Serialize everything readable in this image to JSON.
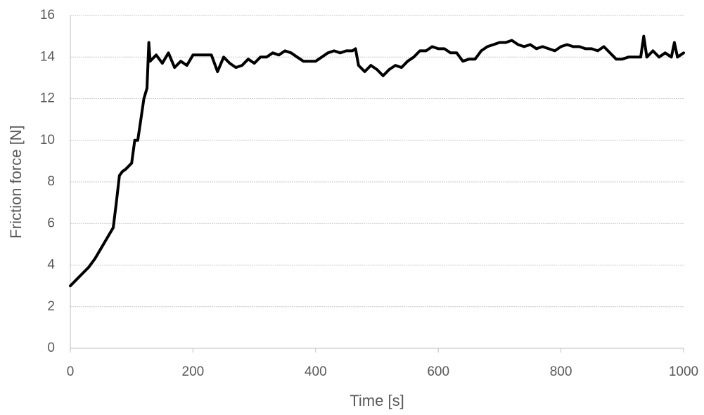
{
  "chart_data": {
    "type": "line",
    "x_label": "Time [s]",
    "y_label": "Friction force [N]",
    "x": [
      0,
      10,
      20,
      30,
      40,
      50,
      60,
      70,
      75,
      80,
      85,
      90,
      100,
      105,
      110,
      115,
      120,
      125,
      128,
      130,
      140,
      150,
      160,
      170,
      180,
      190,
      200,
      210,
      220,
      230,
      240,
      250,
      260,
      270,
      280,
      290,
      300,
      310,
      320,
      330,
      340,
      350,
      360,
      370,
      380,
      390,
      400,
      410,
      420,
      430,
      440,
      450,
      460,
      465,
      470,
      480,
      490,
      500,
      510,
      520,
      530,
      540,
      550,
      560,
      570,
      580,
      590,
      600,
      610,
      620,
      630,
      640,
      650,
      660,
      670,
      680,
      690,
      700,
      710,
      720,
      730,
      740,
      750,
      760,
      770,
      780,
      790,
      800,
      810,
      820,
      830,
      840,
      850,
      860,
      870,
      880,
      890,
      900,
      910,
      920,
      930,
      935,
      940,
      950,
      960,
      970,
      980,
      985,
      990,
      1000
    ],
    "values": [
      3.0,
      3.3,
      3.6,
      3.9,
      4.3,
      4.8,
      5.3,
      5.8,
      7.0,
      8.3,
      8.5,
      8.6,
      8.9,
      10.0,
      10.0,
      11.0,
      12.0,
      12.5,
      14.7,
      13.8,
      14.1,
      13.7,
      14.2,
      13.5,
      13.8,
      13.6,
      14.1,
      14.1,
      14.1,
      14.1,
      13.3,
      14.0,
      13.7,
      13.5,
      13.6,
      13.9,
      13.7,
      14.0,
      14.0,
      14.2,
      14.1,
      14.3,
      14.2,
      14.0,
      13.8,
      13.8,
      13.8,
      14.0,
      14.2,
      14.3,
      14.2,
      14.3,
      14.3,
      14.4,
      13.6,
      13.3,
      13.6,
      13.4,
      13.1,
      13.4,
      13.6,
      13.5,
      13.8,
      14.0,
      14.3,
      14.3,
      14.5,
      14.4,
      14.4,
      14.2,
      14.2,
      13.8,
      13.9,
      13.9,
      14.3,
      14.5,
      14.6,
      14.7,
      14.7,
      14.8,
      14.6,
      14.5,
      14.6,
      14.4,
      14.5,
      14.4,
      14.3,
      14.5,
      14.6,
      14.5,
      14.5,
      14.4,
      14.4,
      14.3,
      14.5,
      14.2,
      13.9,
      13.9,
      14.0,
      14.0,
      14.0,
      15.0,
      14.0,
      14.3,
      14.0,
      14.2,
      14.0,
      14.7,
      14.0,
      14.2
    ],
    "color": "#000000",
    "xlim": [
      0,
      1000
    ],
    "xticks": [
      0,
      200,
      400,
      600,
      800,
      1000
    ],
    "ylim": [
      0,
      16
    ],
    "yticks": [
      0,
      2,
      4,
      6,
      8,
      10,
      12,
      14,
      16
    ],
    "grid": true
  }
}
